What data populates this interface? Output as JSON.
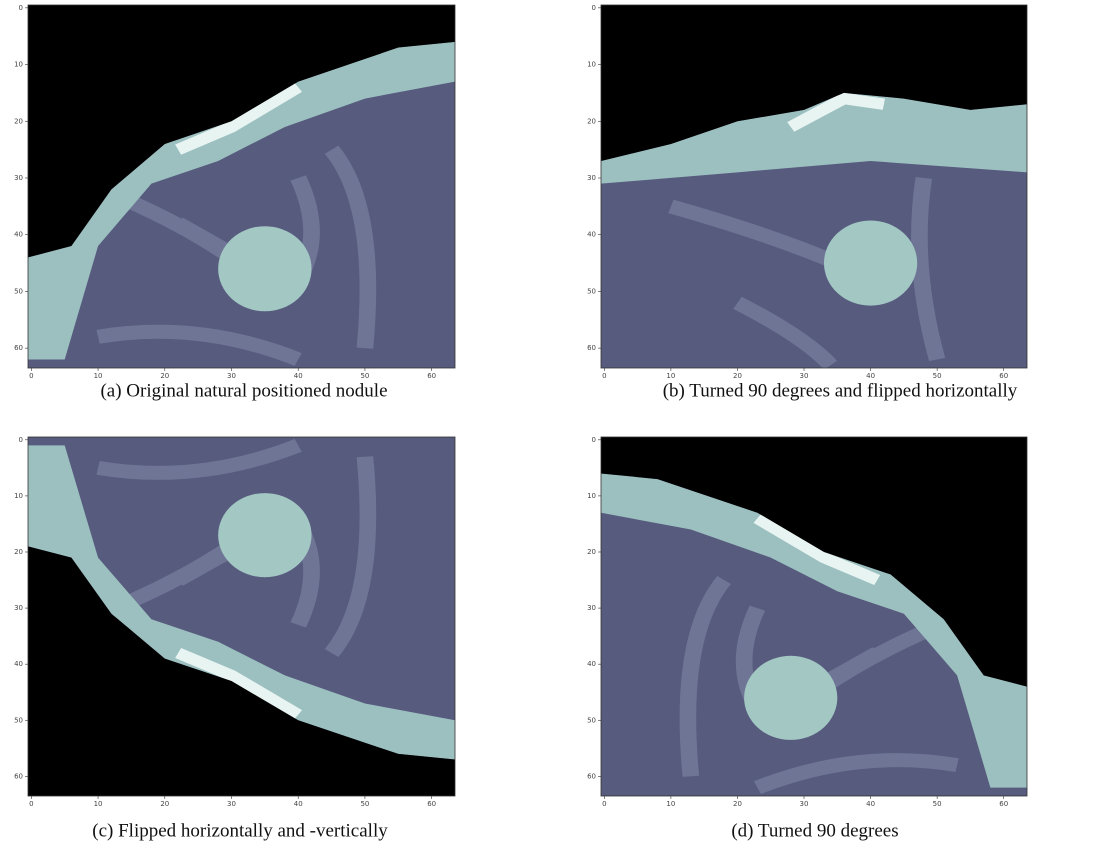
{
  "panels": [
    {
      "caption": "(a) Original natural positioned nodule",
      "xticks": [
        0,
        10,
        20,
        30,
        40,
        50,
        60
      ],
      "yticks": [
        0,
        10,
        20,
        30,
        40,
        50,
        60
      ],
      "xlim": [
        -0.5,
        63.5
      ],
      "ylim": [
        63.5,
        -0.5
      ]
    },
    {
      "caption": "(b) Turned 90 degrees and flipped horizontally",
      "xticks": [
        0,
        10,
        20,
        30,
        40,
        50,
        60
      ],
      "yticks": [
        0,
        10,
        20,
        30,
        40,
        50,
        60
      ],
      "xlim": [
        -0.5,
        63.5
      ],
      "ylim": [
        63.5,
        -0.5
      ]
    },
    {
      "caption": "(c) Flipped horizontally and -vertically",
      "xticks": [
        0,
        10,
        20,
        30,
        40,
        50,
        60
      ],
      "yticks": [
        0,
        10,
        20,
        30,
        40,
        50,
        60
      ],
      "xlim": [
        -0.5,
        63.5
      ],
      "ylim": [
        63.5,
        -0.5
      ]
    },
    {
      "caption": "(d) Turned 90 degrees",
      "xticks": [
        0,
        10,
        20,
        30,
        40,
        50,
        60
      ],
      "yticks": [
        0,
        10,
        20,
        30,
        40,
        50,
        60
      ],
      "xlim": [
        -0.5,
        63.5
      ],
      "ylim": [
        63.5,
        -0.5
      ]
    }
  ]
}
